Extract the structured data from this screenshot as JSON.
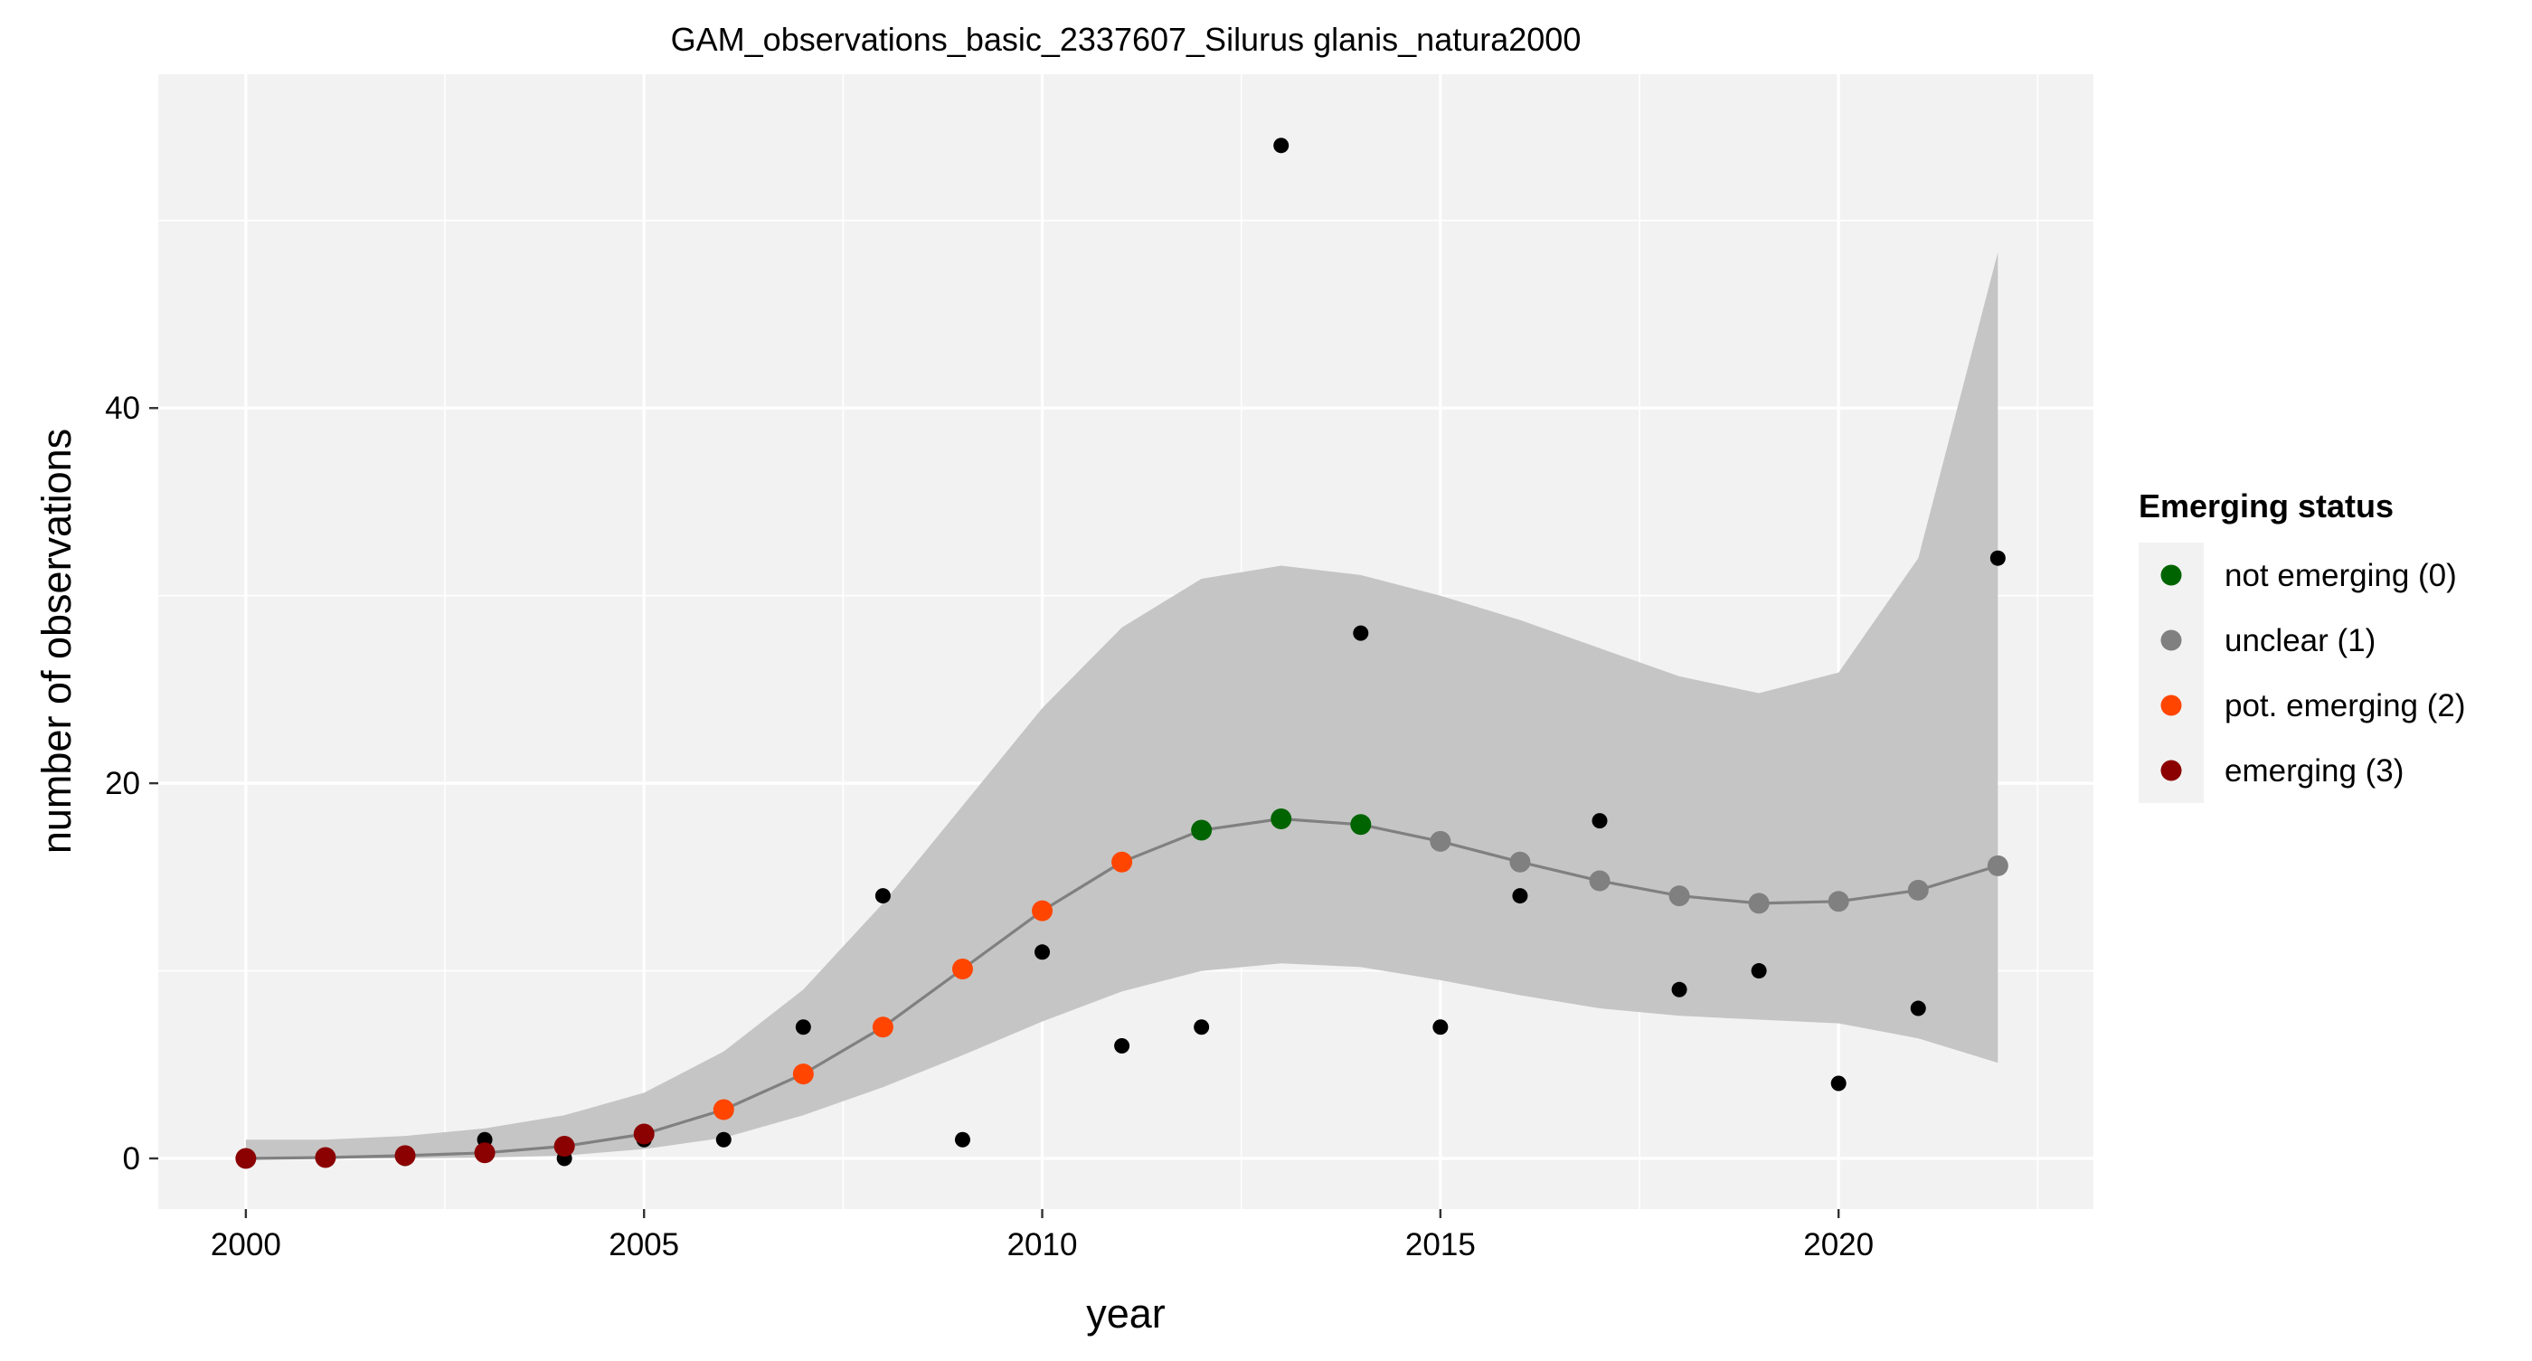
{
  "chart_data": {
    "type": "line",
    "title": "GAM_observations_basic_2337607_Silurus glanis_natura2000",
    "xlabel": "year",
    "ylabel": "number of observations",
    "xlim": [
      1998.9,
      2023.2
    ],
    "ylim": [
      -2.7,
      57.8
    ],
    "x_ticks": [
      2000,
      2005,
      2010,
      2015,
      2020
    ],
    "y_ticks": [
      0,
      20,
      40
    ],
    "x_tick_labels": [
      "2000",
      "2005",
      "2010",
      "2015",
      "2020"
    ],
    "y_tick_labels": [
      "0",
      "20",
      "40"
    ],
    "grid": true,
    "panel_background": "#f2f2f2",
    "ribbon_color": "#c5c5c5",
    "line_color": "#808080",
    "observed_point_color": "#000000",
    "years": [
      2000,
      2001,
      2002,
      2003,
      2004,
      2005,
      2006,
      2007,
      2008,
      2009,
      2010,
      2011,
      2012,
      2013,
      2014,
      2015,
      2016,
      2017,
      2018,
      2019,
      2020,
      2021,
      2022
    ],
    "observed": [
      0,
      0,
      0,
      1,
      0,
      1,
      1,
      7,
      14,
      1,
      11,
      6,
      7,
      54,
      28,
      7,
      14,
      18,
      9,
      10,
      4,
      8,
      32
    ],
    "fit": [
      0.0,
      0.05,
      0.15,
      0.3,
      0.65,
      1.3,
      2.6,
      4.5,
      7.0,
      10.1,
      13.2,
      15.8,
      17.5,
      18.1,
      17.8,
      16.9,
      15.8,
      14.8,
      14.0,
      13.6,
      13.7,
      14.3,
      15.6
    ],
    "lower": [
      0.0,
      0.0,
      0.0,
      0.05,
      0.15,
      0.5,
      1.1,
      2.3,
      3.8,
      5.5,
      7.3,
      8.9,
      10.0,
      10.4,
      10.2,
      9.5,
      8.7,
      8.0,
      7.6,
      7.4,
      7.2,
      6.4,
      5.1
    ],
    "upper": [
      1.0,
      1.0,
      1.2,
      1.6,
      2.3,
      3.5,
      5.7,
      9.0,
      13.6,
      18.8,
      24.0,
      28.3,
      30.9,
      31.6,
      31.1,
      30.0,
      28.7,
      27.2,
      25.7,
      24.8,
      25.9,
      32.0,
      48.3
    ],
    "status": [
      3,
      3,
      3,
      3,
      3,
      3,
      2,
      2,
      2,
      2,
      2,
      2,
      0,
      0,
      0,
      1,
      1,
      1,
      1,
      1,
      1,
      1,
      1
    ],
    "status_colors": {
      "0": "#006400",
      "1": "#808080",
      "2": "#ff4500",
      "3": "#8b0000"
    },
    "legend": {
      "title": "Emerging status",
      "position": "right",
      "entries": [
        {
          "label": "not emerging (0)",
          "color": "#006400"
        },
        {
          "label": "unclear (1)",
          "color": "#808080"
        },
        {
          "label": "pot. emerging (2)",
          "color": "#ff4500"
        },
        {
          "label": "emerging (3)",
          "color": "#8b0000"
        }
      ]
    }
  }
}
